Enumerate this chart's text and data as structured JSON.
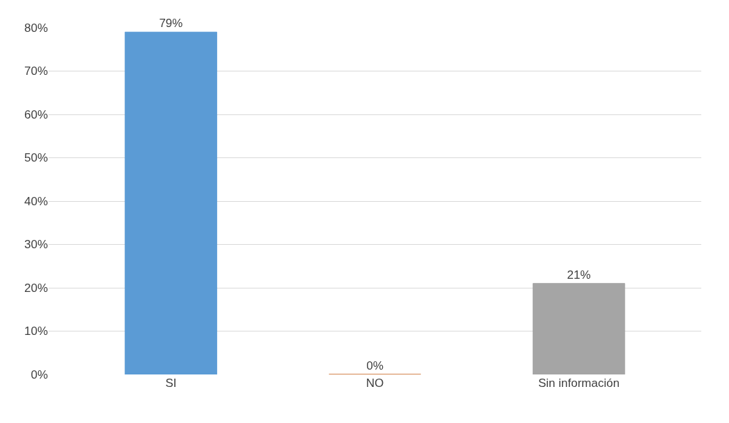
{
  "chart_data": {
    "type": "bar",
    "categories": [
      "SI",
      "NO",
      "Sin información"
    ],
    "values": [
      79,
      0,
      21
    ],
    "colors": [
      "#5b9bd5",
      "#c55a11",
      "#a5a5a5"
    ],
    "value_labels": [
      "79%",
      "0%",
      "21%"
    ],
    "ylim": [
      0,
      80
    ],
    "yticks": [
      {
        "value": 0,
        "label": "0%"
      },
      {
        "value": 10,
        "label": "10%"
      },
      {
        "value": 20,
        "label": "20%"
      },
      {
        "value": 30,
        "label": "30%"
      },
      {
        "value": 40,
        "label": "40%"
      },
      {
        "value": 50,
        "label": "50%"
      },
      {
        "value": 60,
        "label": "60%"
      },
      {
        "value": 70,
        "label": "70%"
      },
      {
        "value": 80,
        "label": "80%"
      }
    ],
    "grid": "y",
    "legend": false
  }
}
